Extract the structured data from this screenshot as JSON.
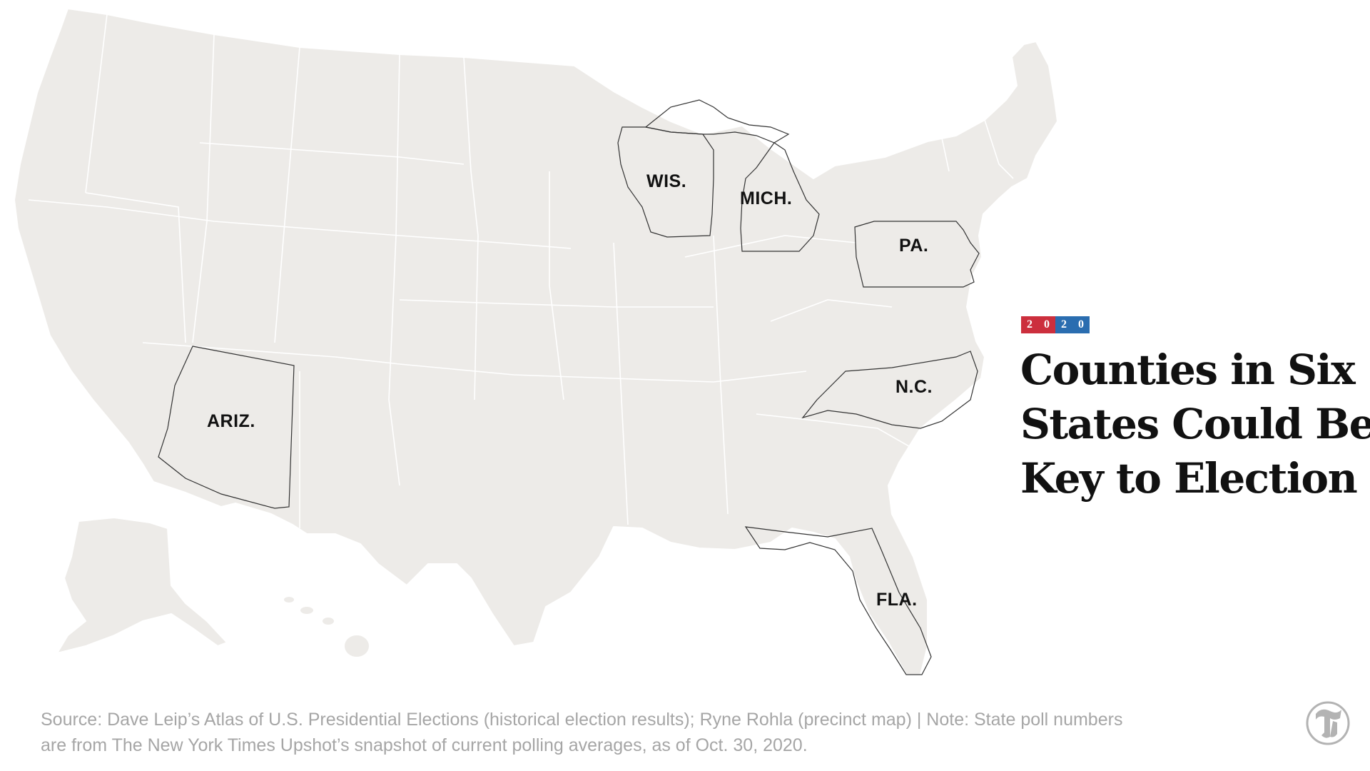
{
  "map": {
    "colors": {
      "land": "#edebe8",
      "state_border": "#ffffff",
      "republican": "#d6424f",
      "republican_light": "#ec9aa0",
      "democrat": "#2f74b6",
      "democrat_light": "#9fc3e6"
    },
    "highlighted_states": [
      {
        "label": "WIS."
      },
      {
        "label": "MICH."
      },
      {
        "label": "PA."
      },
      {
        "label": "ARIZ."
      },
      {
        "label": "N.C."
      },
      {
        "label": "FLA."
      }
    ]
  },
  "badge": {
    "digits": [
      "2",
      "0",
      "2",
      "0"
    ],
    "colors": [
      "#cc2f3d",
      "#cc2f3d",
      "#2a6db0",
      "#2a6db0"
    ]
  },
  "headline": {
    "line1": "Counties in Six",
    "line2": "States Could Be",
    "line3": "Key to Election"
  },
  "footer": {
    "line1": "Source: Dave Leip’s Atlas of U.S. Presidential Elections (historical election results); Ryne Rohla (precinct map) | Note: State poll numbers",
    "line2": "are from The New York Times Upshot’s snapshot of current polling averages, as of Oct. 30, 2020."
  },
  "logo": {
    "icon": "nyt-t-logo-icon"
  }
}
